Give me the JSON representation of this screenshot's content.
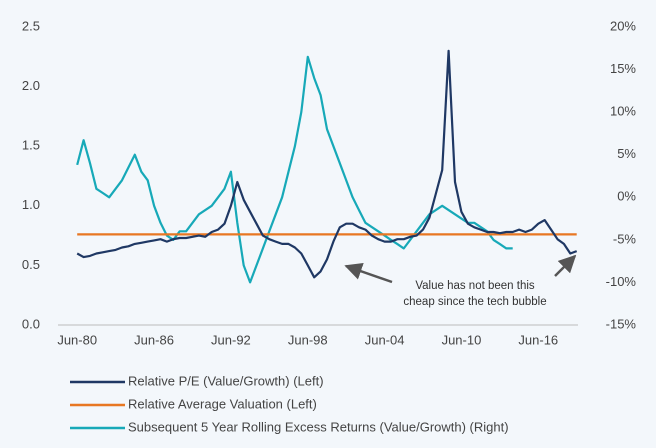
{
  "chart_data": {
    "type": "line",
    "x": [
      1980.5,
      1981,
      1981.5,
      1982,
      1982.5,
      1983,
      1983.5,
      1984,
      1984.5,
      1985,
      1985.5,
      1986,
      1986.5,
      1987,
      1987.5,
      1988,
      1988.5,
      1989,
      1989.5,
      1990,
      1990.5,
      1991,
      1991.5,
      1992,
      1992.5,
      1993,
      1993.5,
      1994,
      1994.5,
      1995,
      1995.5,
      1996,
      1996.5,
      1997,
      1997.5,
      1998,
      1998.5,
      1999,
      1999.5,
      2000,
      2000.5,
      2001,
      2001.5,
      2002,
      2002.5,
      2003,
      2003.5,
      2004,
      2004.5,
      2005,
      2005.5,
      2006,
      2006.5,
      2007,
      2007.5,
      2008,
      2008.5,
      2009,
      2009.5,
      2010,
      2010.5,
      2011,
      2011.5,
      2012,
      2012.5,
      2013,
      2013.5,
      2014,
      2014.5,
      2015,
      2015.5,
      2016,
      2016.5,
      2017,
      2017.5,
      2018,
      2018.5,
      2019,
      2019.5
    ],
    "series": [
      {
        "name": "Relative P/E (Value/Growth) (Left)",
        "color": "#1f3864",
        "axis": "y",
        "values": [
          0.6,
          0.57,
          0.58,
          0.6,
          0.61,
          0.62,
          0.63,
          0.65,
          0.66,
          0.68,
          0.69,
          0.7,
          0.71,
          0.72,
          0.7,
          0.72,
          0.73,
          0.73,
          0.74,
          0.75,
          0.74,
          0.78,
          0.8,
          0.85,
          1.0,
          1.2,
          1.05,
          0.95,
          0.85,
          0.75,
          0.72,
          0.7,
          0.68,
          0.68,
          0.65,
          0.6,
          0.5,
          0.4,
          0.45,
          0.55,
          0.7,
          0.82,
          0.85,
          0.85,
          0.82,
          0.8,
          0.75,
          0.72,
          0.7,
          0.7,
          0.72,
          0.72,
          0.74,
          0.75,
          0.8,
          0.9,
          1.1,
          1.3,
          2.3,
          1.2,
          0.95,
          0.85,
          0.82,
          0.8,
          0.78,
          0.78,
          0.77,
          0.78,
          0.78,
          0.8,
          0.78,
          0.8,
          0.85,
          0.88,
          0.8,
          0.72,
          0.68,
          0.6,
          0.62
        ]
      },
      {
        "name": "Relative Average Valuation (Left)",
        "color": "#e87722",
        "axis": "y",
        "values": [
          0.76,
          0.76,
          0.76,
          0.76,
          0.76,
          0.76,
          0.76,
          0.76,
          0.76,
          0.76,
          0.76,
          0.76,
          0.76,
          0.76,
          0.76,
          0.76,
          0.76,
          0.76,
          0.76,
          0.76,
          0.76,
          0.76,
          0.76,
          0.76,
          0.76,
          0.76,
          0.76,
          0.76,
          0.76,
          0.76,
          0.76,
          0.76,
          0.76,
          0.76,
          0.76,
          0.76,
          0.76,
          0.76,
          0.76,
          0.76,
          0.76,
          0.76,
          0.76,
          0.76,
          0.76,
          0.76,
          0.76,
          0.76,
          0.76,
          0.76,
          0.76,
          0.76,
          0.76,
          0.76,
          0.76,
          0.76,
          0.76,
          0.76,
          0.76,
          0.76,
          0.76,
          0.76,
          0.76,
          0.76,
          0.76,
          0.76,
          0.76,
          0.76,
          0.76,
          0.76,
          0.76,
          0.76,
          0.76,
          0.76,
          0.76,
          0.76,
          0.76,
          0.76,
          0.76
        ]
      },
      {
        "name": "Subsequent 5 Year Rolling Excess Returns (Value/Growth) (Right)",
        "color": "#17a9b8",
        "axis": "y2",
        "values": [
          3.8,
          6.7,
          4,
          1,
          0.5,
          0,
          1,
          2,
          3.5,
          5,
          3,
          2,
          -1,
          -3,
          -4.5,
          -5,
          -4,
          -4,
          -3,
          -2,
          -1.5,
          -1,
          0,
          1,
          3,
          -3,
          -8,
          -10,
          -8,
          -6,
          -4,
          -2,
          0,
          3,
          6,
          10,
          16.5,
          14,
          12,
          8,
          6,
          4,
          2,
          0,
          -1.5,
          -3,
          -3.5,
          -4,
          -4.5,
          -5,
          -5.5,
          -6,
          -5,
          -4,
          -3,
          -2,
          -1.5,
          -1,
          -1.5,
          -2,
          -2.5,
          -3,
          -3,
          -3.5,
          -4,
          -5,
          -5.5,
          -6,
          -6,
          null,
          null,
          null,
          null,
          null,
          null,
          null,
          null,
          null,
          null
        ]
      }
    ],
    "xlim": [
      1979.0,
      2019.6
    ],
    "xticks": [
      {
        "value": 1980.5,
        "label": "Jun-80"
      },
      {
        "value": 1986.5,
        "label": "Jun-86"
      },
      {
        "value": 1992.5,
        "label": "Jun-92"
      },
      {
        "value": 1998.5,
        "label": "Jun-98"
      },
      {
        "value": 2004.5,
        "label": "Jun-04"
      },
      {
        "value": 2010.5,
        "label": "Jun-10"
      },
      {
        "value": 2016.5,
        "label": "Jun-16"
      }
    ],
    "ylim": [
      0,
      2.5
    ],
    "yticks": [
      {
        "value": 0,
        "label": "0.0"
      },
      0.5,
      {
        "value": 1,
        "label": "1.0"
      },
      1.5,
      {
        "value": 2,
        "label": "2.0"
      },
      2.5
    ],
    "y2lim": [
      -15,
      20
    ],
    "y2ticks": [
      {
        "value": -15,
        "label": "-15%"
      },
      {
        "value": -10,
        "label": "-10%"
      },
      {
        "value": -5,
        "label": "-5%"
      },
      {
        "value": 0,
        "label": "0%"
      },
      {
        "value": 5,
        "label": "5%"
      },
      {
        "value": 10,
        "label": "10%"
      },
      {
        "value": 15,
        "label": "15%"
      },
      {
        "value": 20,
        "label": "20%"
      }
    ],
    "annotation": [
      "Value has not been this",
      "cheap since the tech bubble"
    ]
  }
}
